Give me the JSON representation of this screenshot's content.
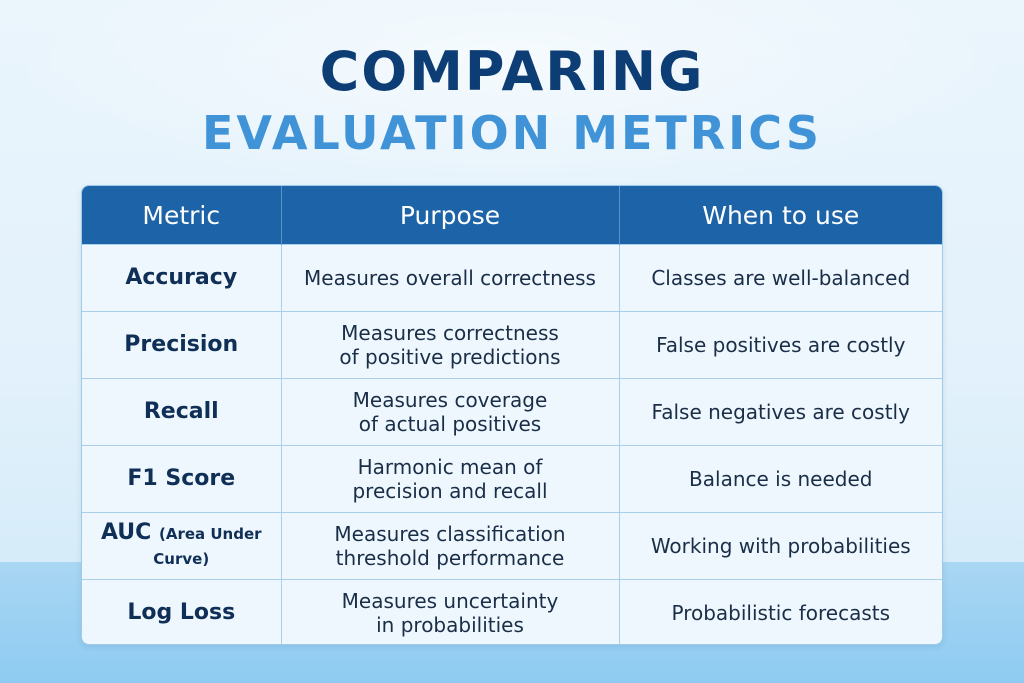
{
  "title": {
    "line1": "COMPARING",
    "line2": "EVALUATION METRICS"
  },
  "table": {
    "headers": [
      "Metric",
      "Purpose",
      "When to use"
    ],
    "rows": [
      {
        "metric": "Accuracy",
        "metric_note": "",
        "purpose": [
          "Measures overall correctness"
        ],
        "when": "Classes are well-balanced"
      },
      {
        "metric": "Precision",
        "metric_note": "",
        "purpose": [
          "Measures correctness",
          "of positive predictions"
        ],
        "when": "False positives are costly"
      },
      {
        "metric": "Recall",
        "metric_note": "",
        "purpose": [
          "Measures coverage",
          "of actual positives"
        ],
        "when": "False negatives are costly"
      },
      {
        "metric": "F1 Score",
        "metric_note": "",
        "purpose": [
          "Harmonic mean of",
          "precision and recall"
        ],
        "when": "Balance is needed"
      },
      {
        "metric": "AUC",
        "metric_note": "(Area Under Curve)",
        "purpose": [
          "Measures classification",
          "threshold performance"
        ],
        "when": "Working with probabilities"
      },
      {
        "metric": "Log Loss",
        "metric_note": "",
        "purpose": [
          "Measures uncertainty",
          "in probabilities"
        ],
        "when": "Probabilistic forecasts"
      }
    ]
  }
}
